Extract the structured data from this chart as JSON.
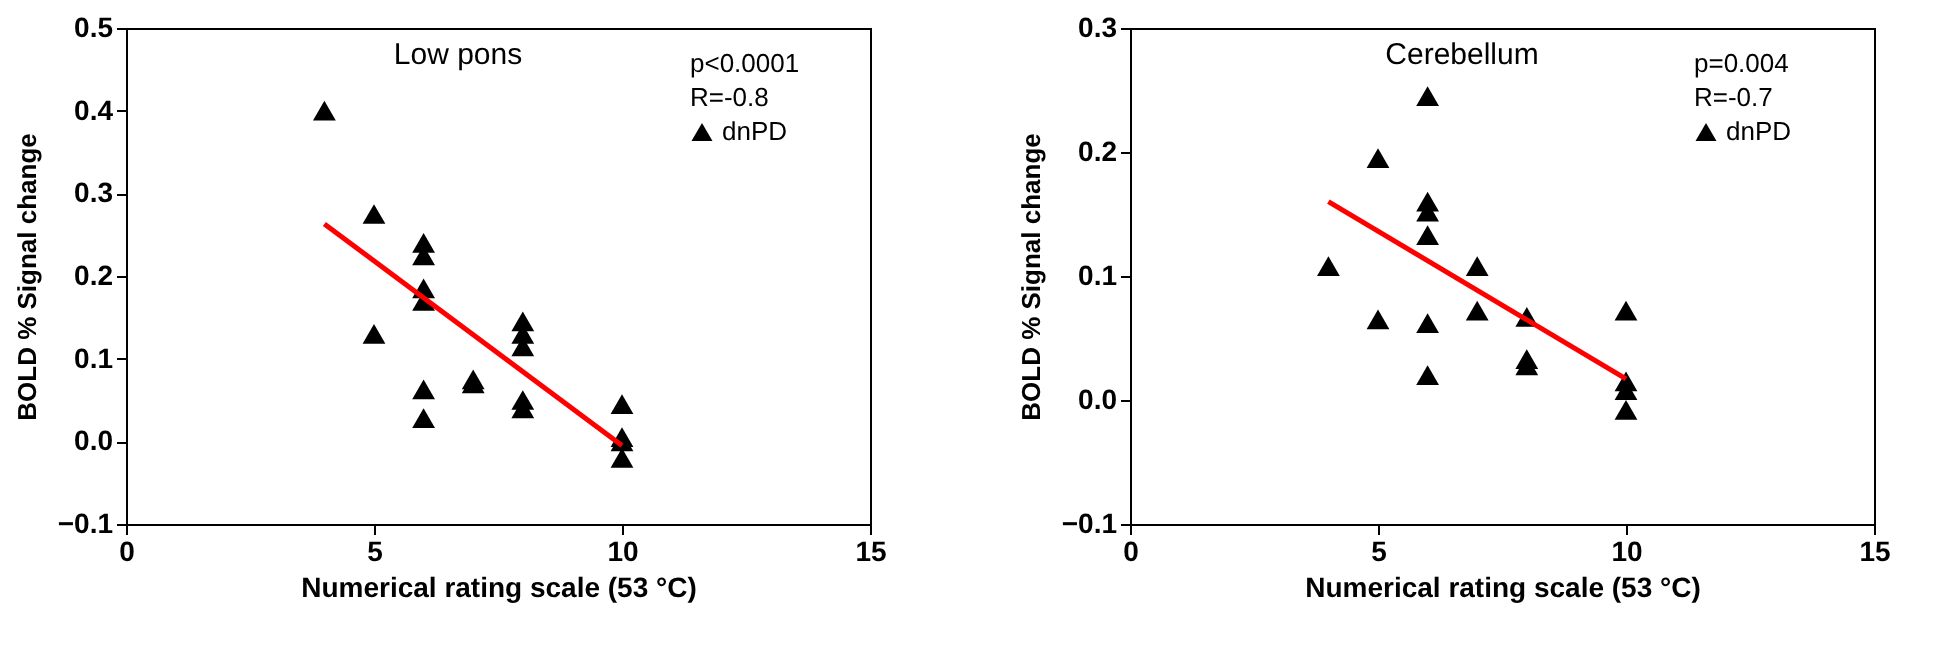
{
  "chart_data": [
    {
      "type": "scatter",
      "title": "Low pons",
      "xlabel": "Numerical rating scale  (53 °C)",
      "ylabel": "BOLD % Signal change",
      "xlim": [
        0,
        15
      ],
      "xticks": [
        0,
        5,
        10,
        15
      ],
      "ylim": [
        -0.1,
        0.5
      ],
      "yticks": [
        -0.1,
        {
          "value": 0,
          "label": "0.0"
        },
        0.1,
        0.2,
        0.3,
        0.4,
        0.5
      ],
      "grid": false,
      "legend": "top right",
      "annotations": [
        "p<0.0001",
        "R=-0.8"
      ],
      "series": [
        {
          "name": "dnPD",
          "color": "#000000",
          "marker": "triangle",
          "x": [
            4,
            5,
            5,
            6,
            6,
            6,
            6,
            6,
            6,
            7,
            7,
            8,
            8,
            8,
            8,
            8,
            10,
            10,
            10,
            10
          ],
          "values": [
            0.4,
            0.275,
            0.13,
            0.24,
            0.225,
            0.185,
            0.17,
            0.063,
            0.028,
            0.075,
            0.07,
            0.145,
            0.13,
            0.115,
            0.05,
            0.04,
            0.045,
            0.005,
            0.0,
            -0.02
          ]
        },
        {
          "type": "line",
          "color": "#ff0000",
          "x": [
            4,
            10
          ],
          "values": [
            0.263,
            -0.005
          ]
        }
      ]
    },
    {
      "type": "scatter",
      "title": "Cerebellum",
      "xlabel": "Numerical rating scale  (53 °C)",
      "ylabel": "BOLD % Signal change",
      "xlim": [
        0,
        15
      ],
      "xticks": [
        0,
        5,
        10,
        15
      ],
      "ylim": [
        -0.1,
        0.3
      ],
      "yticks": [
        -0.1,
        {
          "value": 0,
          "label": "0.0"
        },
        0.1,
        0.2,
        0.3
      ],
      "grid": false,
      "legend": "top right",
      "annotations": [
        "p=0.004",
        "R=-0.7"
      ],
      "series": [
        {
          "name": "dnPD",
          "color": "#000000",
          "marker": "triangle",
          "x": [
            4,
            5,
            5,
            6,
            6,
            6,
            6,
            6,
            6,
            7,
            7,
            8,
            8,
            8,
            10,
            10,
            10,
            10
          ],
          "values": [
            0.108,
            0.195,
            0.065,
            0.245,
            0.16,
            0.152,
            0.133,
            0.062,
            0.02,
            0.108,
            0.072,
            0.067,
            0.033,
            0.028,
            0.072,
            0.015,
            0.008,
            -0.008
          ]
        },
        {
          "type": "line",
          "color": "#ff0000",
          "x": [
            4,
            10
          ],
          "values": [
            0.16,
            0.017
          ]
        }
      ]
    }
  ]
}
